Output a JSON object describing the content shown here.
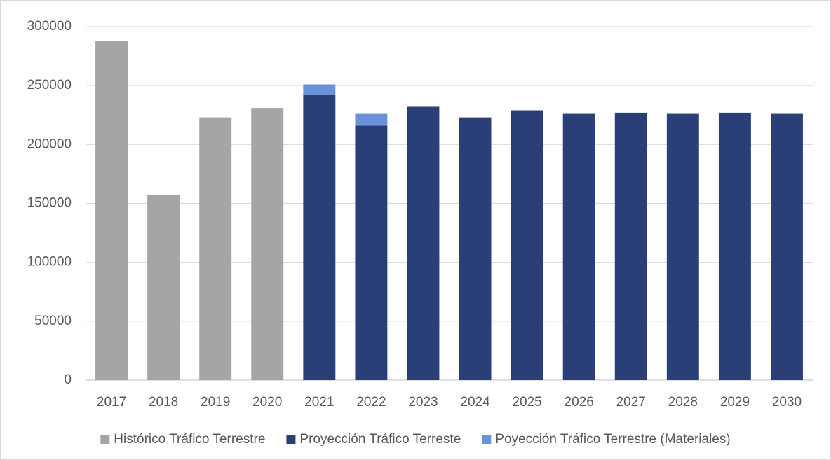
{
  "chart_data": {
    "type": "bar",
    "stacked": true,
    "categories": [
      "2017",
      "2018",
      "2019",
      "2020",
      "2021",
      "2022",
      "2023",
      "2024",
      "2025",
      "2026",
      "2027",
      "2028",
      "2029",
      "2030"
    ],
    "series": [
      {
        "name": "Histórico Tráfico Terrestre",
        "color": "#a5a5a5",
        "values": [
          288000,
          157000,
          223000,
          231000,
          null,
          null,
          null,
          null,
          null,
          null,
          null,
          null,
          null,
          null
        ]
      },
      {
        "name": "Proyección Tráfico Terreste",
        "color": "#2a3f78",
        "values": [
          null,
          null,
          null,
          null,
          242000,
          216000,
          232000,
          223000,
          229000,
          226000,
          227000,
          226000,
          227000,
          226000
        ]
      },
      {
        "name": "Poyección Tráfico Terrestre (Materiales)",
        "color": "#6b92d8",
        "values": [
          null,
          null,
          null,
          null,
          9000,
          10000,
          null,
          null,
          null,
          null,
          null,
          null,
          null,
          null
        ]
      }
    ],
    "ylim": [
      0,
      300000
    ],
    "yticks": [
      0,
      50000,
      100000,
      150000,
      200000,
      250000,
      300000
    ],
    "grid": true,
    "legend": "bottom"
  }
}
